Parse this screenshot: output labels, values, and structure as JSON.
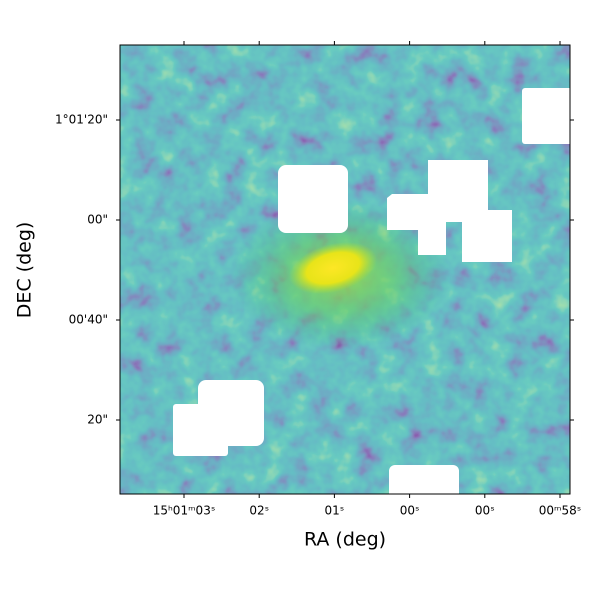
{
  "chart_data": {
    "type": "image",
    "xlabel": "RA (deg)",
    "ylabel": "DEC (deg)",
    "xtick_labels": [
      "15ʰ01ᵐ03ˢ",
      "02ˢ",
      "01ˢ",
      "00ˢ",
      "00ˢ",
      "00ᵐ58ˢ"
    ],
    "ytick_labels": [
      "1°01'20\"",
      "00\"",
      "00'40\"",
      "20\""
    ]
  }
}
